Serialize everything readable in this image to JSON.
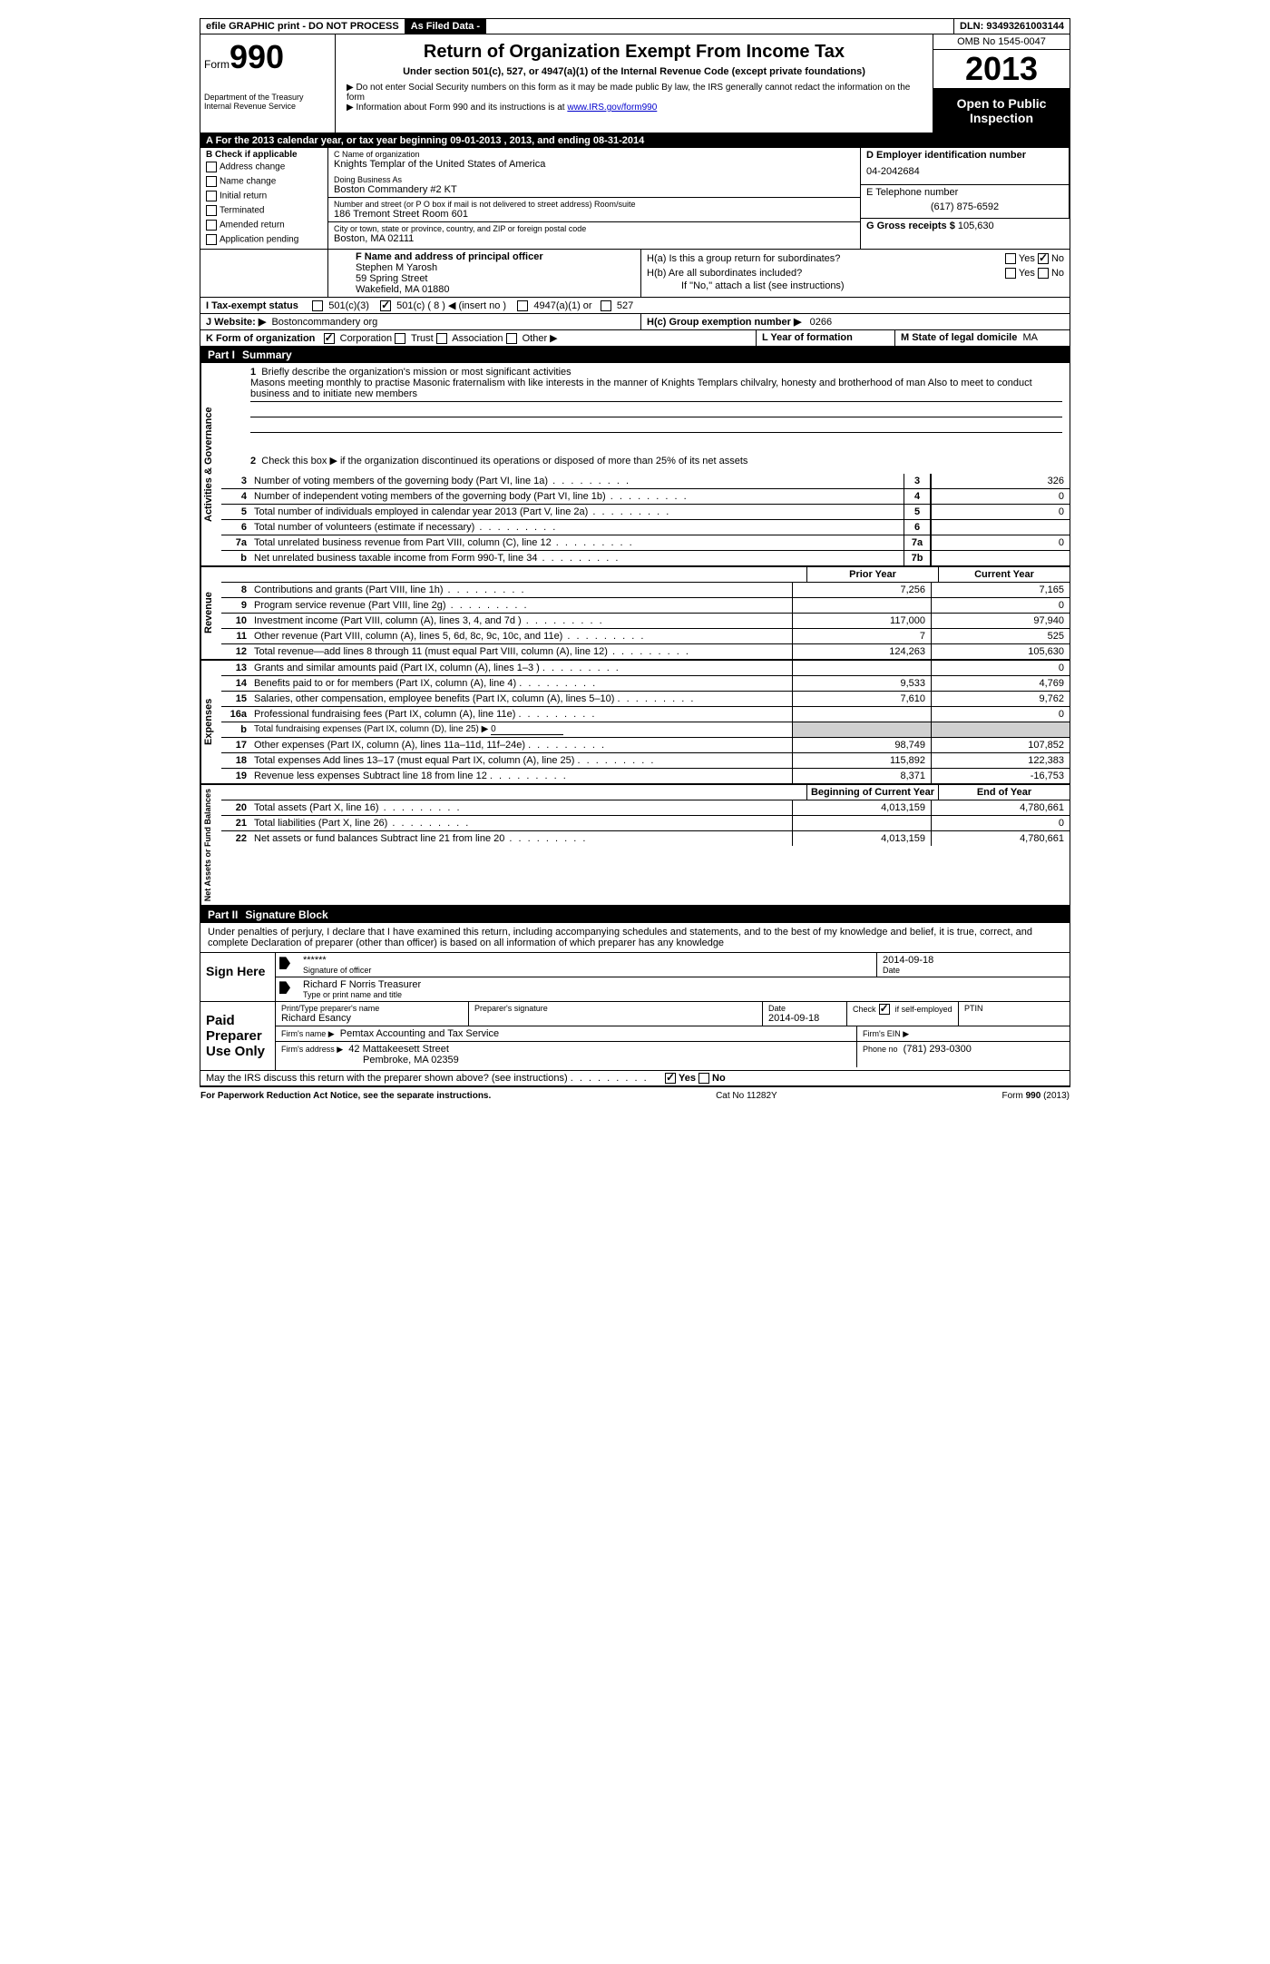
{
  "topbar": {
    "efile": "efile GRAPHIC print - DO NOT PROCESS",
    "asfiled": "As Filed Data -",
    "dln_label": "DLN:",
    "dln": "93493261003144"
  },
  "header": {
    "form_prefix": "Form",
    "form_number": "990",
    "dept1": "Department of the Treasury",
    "dept2": "Internal Revenue Service",
    "title": "Return of Organization Exempt From Income Tax",
    "subtitle": "Under section 501(c), 527, or 4947(a)(1) of the Internal Revenue Code (except private foundations)",
    "note1": "▶ Do not enter Social Security numbers on this form as it may be made public  By law, the IRS generally cannot redact the information on the form",
    "note2_pre": "▶ Information about Form 990 and its instructions is at ",
    "note2_link": "www.IRS.gov/form990",
    "omb": "OMB No  1545-0047",
    "year": "2013",
    "open1": "Open to Public",
    "open2": "Inspection"
  },
  "sectionA": "A  For the 2013 calendar year, or tax year beginning 09-01-2013     , 2013, and ending 08-31-2014",
  "B": {
    "label": "B  Check if applicable",
    "items": [
      "Address change",
      "Name change",
      "Initial return",
      "Terminated",
      "Amended return",
      "Application pending"
    ]
  },
  "C": {
    "name_label": "C Name of organization",
    "name": "Knights Templar of the United States of America",
    "dba_label": "Doing Business As",
    "dba": "Boston Commandery #2 KT",
    "addr_label": "Number and street (or P O  box if mail is not delivered to street address)  Room/suite",
    "addr": "186 Tremont Street Room 601",
    "city_label": "City or town, state or province, country, and ZIP or foreign postal code",
    "city": "Boston, MA  02111"
  },
  "D": {
    "label": "D Employer identification number",
    "value": "04-2042684"
  },
  "E": {
    "label": "E Telephone number",
    "value": "(617) 875-6592"
  },
  "G": {
    "label": "G Gross receipts $",
    "value": "105,630"
  },
  "F": {
    "label": "F  Name and address of principal officer",
    "name": "Stephen M Yarosh",
    "street": "59 Spring Street",
    "city": "Wakefield, MA  01880"
  },
  "H": {
    "a": "H(a)  Is this a group return for subordinates?",
    "b": "H(b)  Are all subordinates included?",
    "note": "If \"No,\" attach a list  (see instructions)",
    "c_label": "H(c)   Group exemption number ▶",
    "c_value": "0266",
    "yes": "Yes",
    "no": "No"
  },
  "I": {
    "label": "I   Tax-exempt status",
    "opt1": "501(c)(3)",
    "opt2": "501(c) ( 8 ) ◀ (insert no )",
    "opt3": "4947(a)(1) or",
    "opt4": "527"
  },
  "J": {
    "label": "J  Website: ▶",
    "value": "Bostoncommandery org"
  },
  "K": {
    "label": "K Form of organization",
    "opts": [
      "Corporation",
      "Trust",
      "Association",
      "Other ▶"
    ]
  },
  "L": {
    "label": "L Year of formation",
    "value": ""
  },
  "M": {
    "label": "M State of legal domicile",
    "value": "MA"
  },
  "part1": {
    "label": "Part I",
    "title": "Summary",
    "gov_label": "Activities & Governance",
    "rev_label": "Revenue",
    "exp_label": "Expenses",
    "bal_label": "Net Assets or Fund Balances",
    "line1_label": "Briefly describe the organization's mission or most significant activities",
    "line1_text": "Masons meeting monthly to practise Masonic fraternalism with like interests in the manner of Knights Templars chilvalry, honesty and brotherhood of man  Also to meet to conduct business and to initiate new members",
    "line2": "Check this box ▶     if the organization discontinued its operations or disposed of more than 25% of its net assets",
    "lines_gov": [
      {
        "n": "3",
        "d": "Number of voting members of the governing body (Part VI, line 1a)",
        "b": "3",
        "v": "326"
      },
      {
        "n": "4",
        "d": "Number of independent voting members of the governing body (Part VI, line 1b)",
        "b": "4",
        "v": "0"
      },
      {
        "n": "5",
        "d": "Total number of individuals employed in calendar year 2013 (Part V, line 2a)",
        "b": "5",
        "v": "0"
      },
      {
        "n": "6",
        "d": "Total number of volunteers (estimate if necessary)",
        "b": "6",
        "v": ""
      },
      {
        "n": "7a",
        "d": "Total unrelated business revenue from Part VIII, column (C), line 12",
        "b": "7a",
        "v": "0"
      },
      {
        "n": "b",
        "d": "Net unrelated business taxable income from Form 990-T, line 34",
        "b": "7b",
        "v": ""
      }
    ],
    "col_prior": "Prior Year",
    "col_current": "Current Year",
    "lines_rev": [
      {
        "n": "8",
        "d": "Contributions and grants (Part VIII, line 1h)",
        "p": "7,256",
        "c": "7,165"
      },
      {
        "n": "9",
        "d": "Program service revenue (Part VIII, line 2g)",
        "p": "",
        "c": "0"
      },
      {
        "n": "10",
        "d": "Investment income (Part VIII, column (A), lines 3, 4, and 7d )",
        "p": "117,000",
        "c": "97,940"
      },
      {
        "n": "11",
        "d": "Other revenue (Part VIII, column (A), lines 5, 6d, 8c, 9c, 10c, and 11e)",
        "p": "7",
        "c": "525"
      },
      {
        "n": "12",
        "d": "Total revenue—add lines 8 through 11 (must equal Part VIII, column (A), line 12)",
        "p": "124,263",
        "c": "105,630"
      }
    ],
    "lines_exp": [
      {
        "n": "13",
        "d": "Grants and similar amounts paid (Part IX, column (A), lines 1–3 )",
        "p": "",
        "c": "0"
      },
      {
        "n": "14",
        "d": "Benefits paid to or for members (Part IX, column (A), line 4)",
        "p": "9,533",
        "c": "4,769"
      },
      {
        "n": "15",
        "d": "Salaries, other compensation, employee benefits (Part IX, column (A), lines 5–10)",
        "p": "7,610",
        "c": "9,762"
      },
      {
        "n": "16a",
        "d": "Professional fundraising fees (Part IX, column (A), line 11e)",
        "p": "",
        "c": "0"
      },
      {
        "n": "b",
        "d": "Total fundraising expenses (Part IX, column (D), line 25) ▶",
        "p": "gray",
        "c": "gray",
        "u": "0"
      },
      {
        "n": "17",
        "d": "Other expenses (Part IX, column (A), lines 11a–11d, 11f–24e)",
        "p": "98,749",
        "c": "107,852"
      },
      {
        "n": "18",
        "d": "Total expenses  Add lines 13–17 (must equal Part IX, column (A), line 25)",
        "p": "115,892",
        "c": "122,383"
      },
      {
        "n": "19",
        "d": "Revenue less expenses  Subtract line 18 from line 12",
        "p": "8,371",
        "c": "-16,753"
      }
    ],
    "col_begin": "Beginning of Current Year",
    "col_end": "End of Year",
    "lines_bal": [
      {
        "n": "20",
        "d": "Total assets (Part X, line 16)",
        "p": "4,013,159",
        "c": "4,780,661"
      },
      {
        "n": "21",
        "d": "Total liabilities (Part X, line 26)",
        "p": "",
        "c": "0"
      },
      {
        "n": "22",
        "d": "Net assets or fund balances  Subtract line 21 from line 20",
        "p": "4,013,159",
        "c": "4,780,661"
      }
    ]
  },
  "part2": {
    "label": "Part II",
    "title": "Signature Block",
    "declare": "Under penalties of perjury, I declare that I have examined this return, including accompanying schedules and statements, and to the best of my knowledge and belief, it is true, correct, and complete  Declaration of preparer (other than officer) is based on all information of which preparer has any knowledge",
    "sign_here": "Sign Here",
    "sig_stars": "******",
    "sig_date": "2014-09-18",
    "sig_officer_label": "Signature of officer",
    "date_label": "Date",
    "officer_name": "Richard F Norris Treasurer",
    "officer_type_label": "Type or print name and title",
    "paid_label": "Paid Preparer Use Only",
    "prep_name_label": "Print/Type preparer's name",
    "prep_name": "Richard Esancy",
    "prep_sig_label": "Preparer's signature",
    "prep_date_label": "Date",
    "prep_date": "2014-09-18",
    "check_self": "Check",
    "self_emp": "if self-employed",
    "ptin": "PTIN",
    "firm_name_label": "Firm's name    ▶",
    "firm_name": "Pemtax Accounting and Tax Service",
    "firm_ein_label": "Firm's EIN ▶",
    "firm_addr_label": "Firm's address ▶",
    "firm_addr1": "42 Mattakeesett Street",
    "firm_addr2": "Pembroke, MA  02359",
    "phone_label": "Phone no",
    "phone": "(781) 293-0300",
    "discuss": "May the IRS discuss this return with the preparer shown above? (see instructions)"
  },
  "footer": {
    "left": "For Paperwork Reduction Act Notice, see the separate instructions.",
    "mid": "Cat No  11282Y",
    "right": "Form 990 (2013)"
  }
}
